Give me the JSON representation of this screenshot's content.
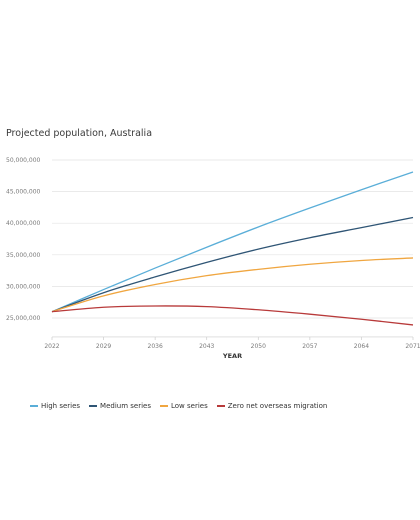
{
  "chart_data": {
    "type": "line",
    "title": "Projected population, Australia",
    "xlabel": "YEAR",
    "ylabel": "",
    "x": [
      2022,
      2029,
      2036,
      2043,
      2050,
      2057,
      2064,
      2071
    ],
    "x_tick_labels": [
      "2022",
      "2029",
      "2036",
      "2043",
      "2050",
      "2057",
      "2064",
      "2071"
    ],
    "y_tick_labels": [
      "25,000,000",
      "30,000,000",
      "35,000,000",
      "40,000,000",
      "45,000,000",
      "50,000,000"
    ],
    "y_ticks": [
      25000000,
      30000000,
      35000000,
      40000000,
      45000000,
      50000000
    ],
    "xlim": [
      2022,
      2071
    ],
    "ylim": [
      22000000,
      50000000
    ],
    "grid": "horizontal",
    "legend_position": "bottom",
    "series": [
      {
        "name": "High series",
        "color": "#5aaed8",
        "values": [
          26000000,
          29500000,
          32900000,
          36200000,
          39400000,
          42400000,
          45300000,
          48100000
        ]
      },
      {
        "name": "Medium series",
        "color": "#2f5575",
        "values": [
          26000000,
          29000000,
          31500000,
          33800000,
          35900000,
          37700000,
          39300000,
          40900000
        ]
      },
      {
        "name": "Low series",
        "color": "#f0a640",
        "values": [
          26000000,
          28500000,
          30300000,
          31700000,
          32700000,
          33500000,
          34100000,
          34500000
        ]
      },
      {
        "name": "Zero net overseas migration",
        "color": "#b83a3a",
        "values": [
          26000000,
          26700000,
          26900000,
          26800000,
          26300000,
          25600000,
          24800000,
          23900000
        ]
      }
    ]
  }
}
